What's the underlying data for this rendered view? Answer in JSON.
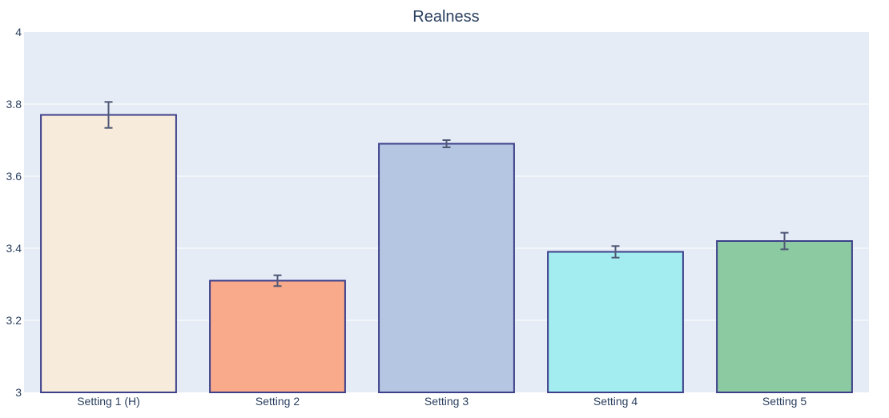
{
  "chart_data": {
    "type": "bar",
    "title": "Realness",
    "xlabel": "",
    "ylabel": "",
    "categories": [
      "Setting 1 (H)",
      "Setting 2",
      "Setting 3",
      "Setting 4",
      "Setting 5"
    ],
    "values": [
      3.77,
      3.31,
      3.69,
      3.39,
      3.42
    ],
    "error": [
      0.036,
      0.015,
      0.01,
      0.016,
      0.023
    ],
    "colors": [
      "#f7ebdb",
      "#f9aa8a",
      "#b5c6e2",
      "#a3edf0",
      "#8ccba2"
    ],
    "bar_outline": "#3d3f8a",
    "error_bar_color": "#4f5875",
    "ylim": [
      3,
      4
    ],
    "yticks": [
      3,
      3.2,
      3.4,
      3.6,
      3.8,
      4
    ],
    "ytick_labels": [
      "3",
      "3.2",
      "3.4",
      "3.6",
      "3.8",
      "4"
    ],
    "grid": true,
    "plot_background": "#e5ecf6",
    "legend": "none"
  }
}
